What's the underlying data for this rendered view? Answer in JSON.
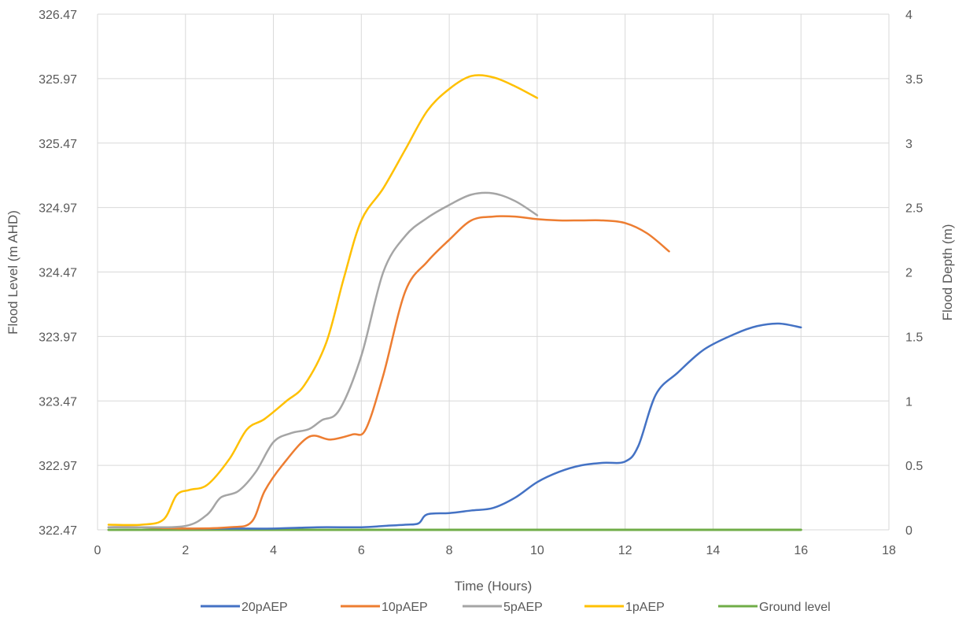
{
  "chart_data": {
    "type": "line",
    "title": "",
    "xlabel": "Time (Hours)",
    "ylabel_left": "Flood Level (m AHD)",
    "ylabel_right": "Flood Depth (m)",
    "xlim": [
      0,
      18
    ],
    "ylim_right": [
      0,
      4
    ],
    "ylim_left": [
      322.47,
      326.47
    ],
    "x_ticks": [
      "0",
      "2",
      "4",
      "6",
      "8",
      "10",
      "12",
      "14",
      "16",
      "18"
    ],
    "y_left_ticks": [
      "322.47",
      "322.97",
      "323.47",
      "323.97",
      "324.47",
      "324.97",
      "325.47",
      "325.97",
      "326.47"
    ],
    "y_right_ticks": [
      "0",
      "0.5",
      "1",
      "1.5",
      "2",
      "2.5",
      "3",
      "3.5",
      "4"
    ],
    "grid": true,
    "legend_position": "bottom",
    "series": [
      {
        "name": "20pAEP",
        "color": "#4472C4",
        "points": [
          [
            0.25,
            0.02
          ],
          [
            1,
            0.02
          ],
          [
            2,
            0.01
          ],
          [
            3,
            0.01
          ],
          [
            4,
            0.01
          ],
          [
            5,
            0.02
          ],
          [
            6,
            0.02
          ],
          [
            6.5,
            0.03
          ],
          [
            7,
            0.04
          ],
          [
            7.3,
            0.05
          ],
          [
            7.5,
            0.12
          ],
          [
            8,
            0.13
          ],
          [
            8.5,
            0.15
          ],
          [
            9,
            0.17
          ],
          [
            9.5,
            0.25
          ],
          [
            10,
            0.37
          ],
          [
            10.5,
            0.45
          ],
          [
            11,
            0.5
          ],
          [
            11.5,
            0.52
          ],
          [
            12,
            0.53
          ],
          [
            12.3,
            0.65
          ],
          [
            12.7,
            1.05
          ],
          [
            13.2,
            1.22
          ],
          [
            13.8,
            1.4
          ],
          [
            14.5,
            1.52
          ],
          [
            15,
            1.58
          ],
          [
            15.5,
            1.6
          ],
          [
            16,
            1.57
          ]
        ]
      },
      {
        "name": "10pAEP",
        "color": "#ED7D31",
        "points": [
          [
            0.25,
            0.02
          ],
          [
            1,
            0.02
          ],
          [
            2,
            0.01
          ],
          [
            3,
            0.02
          ],
          [
            3.5,
            0.06
          ],
          [
            3.8,
            0.3
          ],
          [
            4.2,
            0.5
          ],
          [
            4.8,
            0.72
          ],
          [
            5.3,
            0.7
          ],
          [
            5.8,
            0.74
          ],
          [
            6.1,
            0.78
          ],
          [
            6.5,
            1.2
          ],
          [
            7,
            1.85
          ],
          [
            7.5,
            2.08
          ],
          [
            8,
            2.25
          ],
          [
            8.5,
            2.4
          ],
          [
            9,
            2.43
          ],
          [
            9.5,
            2.43
          ],
          [
            10,
            2.41
          ],
          [
            10.5,
            2.4
          ],
          [
            11,
            2.4
          ],
          [
            11.5,
            2.4
          ],
          [
            12,
            2.38
          ],
          [
            12.5,
            2.3
          ],
          [
            13,
            2.16
          ]
        ]
      },
      {
        "name": "5pAEP",
        "color": "#A5A5A5",
        "points": [
          [
            0.25,
            0.02
          ],
          [
            1,
            0.02
          ],
          [
            2,
            0.03
          ],
          [
            2.5,
            0.12
          ],
          [
            2.8,
            0.25
          ],
          [
            3.2,
            0.3
          ],
          [
            3.6,
            0.45
          ],
          [
            4,
            0.68
          ],
          [
            4.4,
            0.75
          ],
          [
            4.8,
            0.78
          ],
          [
            5.1,
            0.85
          ],
          [
            5.5,
            0.93
          ],
          [
            6,
            1.35
          ],
          [
            6.5,
            2.0
          ],
          [
            7,
            2.28
          ],
          [
            7.5,
            2.42
          ],
          [
            8,
            2.52
          ],
          [
            8.5,
            2.6
          ],
          [
            9,
            2.61
          ],
          [
            9.5,
            2.55
          ],
          [
            10,
            2.44
          ]
        ]
      },
      {
        "name": "1pAEP",
        "color": "#FFC000",
        "points": [
          [
            0.25,
            0.04
          ],
          [
            1,
            0.04
          ],
          [
            1.5,
            0.08
          ],
          [
            1.8,
            0.27
          ],
          [
            2.1,
            0.31
          ],
          [
            2.5,
            0.35
          ],
          [
            3,
            0.55
          ],
          [
            3.4,
            0.78
          ],
          [
            3.8,
            0.86
          ],
          [
            4.3,
            1.0
          ],
          [
            4.7,
            1.12
          ],
          [
            5.2,
            1.45
          ],
          [
            5.6,
            1.95
          ],
          [
            6,
            2.4
          ],
          [
            6.5,
            2.65
          ],
          [
            7,
            2.95
          ],
          [
            7.5,
            3.25
          ],
          [
            8,
            3.42
          ],
          [
            8.5,
            3.52
          ],
          [
            9,
            3.51
          ],
          [
            9.5,
            3.44
          ],
          [
            10,
            3.35
          ]
        ]
      },
      {
        "name": "Ground level",
        "color": "#70AD47",
        "points": [
          [
            0.25,
            0
          ],
          [
            16,
            0
          ]
        ]
      }
    ]
  }
}
